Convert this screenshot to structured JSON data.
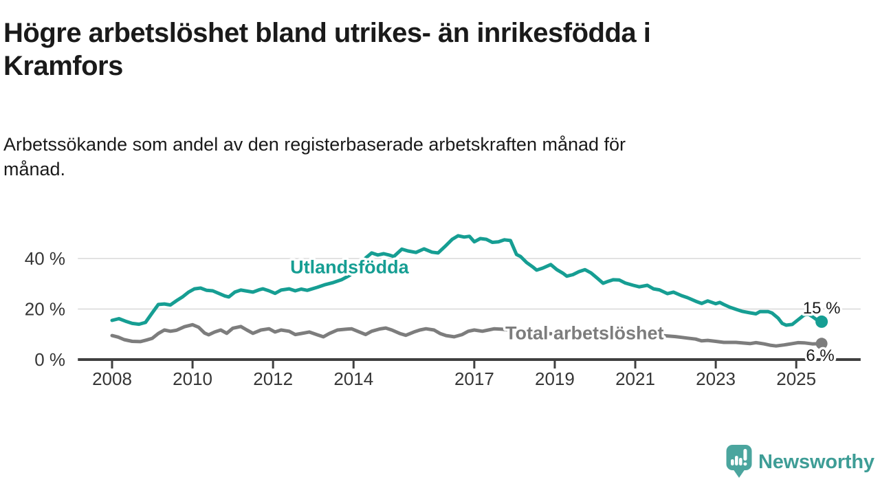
{
  "header": {
    "title": "Högre arbetslöshet bland utrikes- än inrikesfödda i Kramfors",
    "title_lines": [
      "Högre arbetslöshet bland utrikes- än inrikesfödda i",
      "Kramfors"
    ],
    "subtitle": "Arbetssökande som andel av den registerbaserade arbetskraften månad för månad.",
    "subtitle_lines": [
      "Arbetssökande som andel av den registerbaserade arbetskraften månad för",
      "månad."
    ]
  },
  "branding": {
    "name": "Newsworthy",
    "icon": "speech-bubble-bar-chart-exclamation",
    "badge_color": "#4ba59e",
    "text_color": "#3e9d96"
  },
  "chart_data": {
    "type": "line",
    "title": "Högre arbetslöshet bland utrikes- än inrikesfödda i Kramfors",
    "subtitle": "Arbetssökande som andel av den registerbaserade arbetskraften månad för månad.",
    "xlabel": "",
    "ylabel": "",
    "unit": "%",
    "grid": "horizontal",
    "legend_position": "inline-labels",
    "x_axis": {
      "ticks": [
        2008,
        2010,
        2012,
        2014,
        2017,
        2019,
        2021,
        2023,
        2025
      ],
      "range": [
        2007.15,
        2026.6
      ]
    },
    "y_axis": {
      "ticks": [
        {
          "value": 0,
          "label": "0 %"
        },
        {
          "value": 20,
          "label": "20 %"
        },
        {
          "value": 40,
          "label": "40 %"
        }
      ],
      "range": [
        0,
        52
      ]
    },
    "colors": {
      "gridline": "#d8d8d8",
      "axis": "#404040",
      "tick_text": "#363636",
      "annotation_text": "#1a1a1a"
    },
    "series": [
      {
        "name": "Utlandsfödda",
        "color": "#169e93",
        "end_label": "15 %",
        "end_value": 15,
        "label_anchor": [
          2013.9,
          36.6
        ],
        "points": [
          [
            2008.0,
            15.5
          ],
          [
            2008.17,
            16.2
          ],
          [
            2008.33,
            15.2
          ],
          [
            2008.5,
            14.3
          ],
          [
            2008.67,
            14.0
          ],
          [
            2008.83,
            14.7
          ],
          [
            2009.0,
            18.5
          ],
          [
            2009.15,
            21.8
          ],
          [
            2009.3,
            22.0
          ],
          [
            2009.45,
            21.6
          ],
          [
            2009.6,
            23.3
          ],
          [
            2009.75,
            24.8
          ],
          [
            2009.9,
            26.7
          ],
          [
            2010.05,
            28.0
          ],
          [
            2010.2,
            28.3
          ],
          [
            2010.35,
            27.4
          ],
          [
            2010.5,
            27.2
          ],
          [
            2010.65,
            26.2
          ],
          [
            2010.8,
            25.2
          ],
          [
            2010.9,
            24.8
          ],
          [
            2011.05,
            26.7
          ],
          [
            2011.2,
            27.5
          ],
          [
            2011.35,
            27.1
          ],
          [
            2011.5,
            26.7
          ],
          [
            2011.65,
            27.6
          ],
          [
            2011.75,
            28.0
          ],
          [
            2011.9,
            27.2
          ],
          [
            2012.05,
            26.2
          ],
          [
            2012.2,
            27.5
          ],
          [
            2012.4,
            28.0
          ],
          [
            2012.55,
            27.2
          ],
          [
            2012.7,
            27.9
          ],
          [
            2012.85,
            27.4
          ],
          [
            2013.1,
            28.6
          ],
          [
            2013.3,
            29.7
          ],
          [
            2013.5,
            30.5
          ],
          [
            2013.7,
            31.6
          ],
          [
            2013.9,
            33.3
          ],
          [
            2014.1,
            36.2
          ],
          [
            2014.3,
            40.2
          ],
          [
            2014.45,
            42.2
          ],
          [
            2014.6,
            41.4
          ],
          [
            2014.75,
            41.9
          ],
          [
            2014.9,
            41.3
          ],
          [
            2015.0,
            40.8
          ],
          [
            2015.2,
            43.7
          ],
          [
            2015.35,
            43.0
          ],
          [
            2015.55,
            42.4
          ],
          [
            2015.75,
            43.8
          ],
          [
            2015.95,
            42.5
          ],
          [
            2016.1,
            42.2
          ],
          [
            2016.3,
            45.2
          ],
          [
            2016.45,
            47.6
          ],
          [
            2016.6,
            49.0
          ],
          [
            2016.75,
            48.5
          ],
          [
            2016.88,
            48.8
          ],
          [
            2017.0,
            46.6
          ],
          [
            2017.15,
            47.9
          ],
          [
            2017.3,
            47.6
          ],
          [
            2017.45,
            46.4
          ],
          [
            2017.6,
            46.6
          ],
          [
            2017.75,
            47.4
          ],
          [
            2017.9,
            47.1
          ],
          [
            2018.05,
            41.6
          ],
          [
            2018.15,
            40.8
          ],
          [
            2018.3,
            38.4
          ],
          [
            2018.45,
            36.7
          ],
          [
            2018.55,
            35.4
          ],
          [
            2018.7,
            36.2
          ],
          [
            2018.9,
            37.6
          ],
          [
            2019.05,
            35.6
          ],
          [
            2019.2,
            34.2
          ],
          [
            2019.3,
            33.0
          ],
          [
            2019.45,
            33.6
          ],
          [
            2019.6,
            34.8
          ],
          [
            2019.75,
            35.6
          ],
          [
            2019.9,
            34.3
          ],
          [
            2020.05,
            32.3
          ],
          [
            2020.2,
            30.2
          ],
          [
            2020.3,
            30.8
          ],
          [
            2020.45,
            31.6
          ],
          [
            2020.6,
            31.5
          ],
          [
            2020.75,
            30.3
          ],
          [
            2020.95,
            29.4
          ],
          [
            2021.1,
            28.8
          ],
          [
            2021.3,
            29.4
          ],
          [
            2021.45,
            28.0
          ],
          [
            2021.6,
            27.6
          ],
          [
            2021.8,
            26.1
          ],
          [
            2021.95,
            26.7
          ],
          [
            2022.15,
            25.3
          ],
          [
            2022.3,
            24.5
          ],
          [
            2022.5,
            23.1
          ],
          [
            2022.65,
            22.2
          ],
          [
            2022.8,
            23.2
          ],
          [
            2023.0,
            22.1
          ],
          [
            2023.1,
            22.6
          ],
          [
            2023.2,
            21.8
          ],
          [
            2023.35,
            20.7
          ],
          [
            2023.5,
            19.9
          ],
          [
            2023.65,
            19.1
          ],
          [
            2023.85,
            18.5
          ],
          [
            2024.0,
            18.1
          ],
          [
            2024.1,
            19.0
          ],
          [
            2024.3,
            19.0
          ],
          [
            2024.4,
            18.4
          ],
          [
            2024.55,
            16.4
          ],
          [
            2024.65,
            14.3
          ],
          [
            2024.75,
            13.6
          ],
          [
            2024.9,
            13.9
          ],
          [
            2025.05,
            15.8
          ],
          [
            2025.2,
            17.7
          ],
          [
            2025.3,
            18.0
          ],
          [
            2025.4,
            17.0
          ],
          [
            2025.55,
            15.3
          ],
          [
            2025.63,
            15.0
          ]
        ]
      },
      {
        "name": "Total arbetslöshet",
        "color": "#7d7d7d",
        "end_label": "6 %",
        "end_value": 6,
        "label_anchor": [
          2019.74,
          10.5
        ],
        "points": [
          [
            2008.0,
            9.5
          ],
          [
            2008.15,
            8.9
          ],
          [
            2008.3,
            7.9
          ],
          [
            2008.5,
            7.2
          ],
          [
            2008.7,
            7.1
          ],
          [
            2008.85,
            7.7
          ],
          [
            2009.0,
            8.4
          ],
          [
            2009.15,
            10.3
          ],
          [
            2009.3,
            11.7
          ],
          [
            2009.45,
            11.2
          ],
          [
            2009.6,
            11.6
          ],
          [
            2009.8,
            13.0
          ],
          [
            2010.0,
            13.8
          ],
          [
            2010.15,
            12.8
          ],
          [
            2010.3,
            10.5
          ],
          [
            2010.4,
            9.8
          ],
          [
            2010.55,
            10.9
          ],
          [
            2010.7,
            11.7
          ],
          [
            2010.85,
            10.4
          ],
          [
            2011.0,
            12.4
          ],
          [
            2011.2,
            13.1
          ],
          [
            2011.35,
            11.7
          ],
          [
            2011.5,
            10.4
          ],
          [
            2011.7,
            11.7
          ],
          [
            2011.9,
            12.2
          ],
          [
            2012.05,
            10.9
          ],
          [
            2012.2,
            11.7
          ],
          [
            2012.4,
            11.2
          ],
          [
            2012.55,
            9.9
          ],
          [
            2012.7,
            10.3
          ],
          [
            2012.9,
            10.9
          ],
          [
            2013.1,
            9.8
          ],
          [
            2013.25,
            9.0
          ],
          [
            2013.4,
            10.3
          ],
          [
            2013.6,
            11.7
          ],
          [
            2013.8,
            12.0
          ],
          [
            2013.95,
            12.2
          ],
          [
            2014.1,
            11.2
          ],
          [
            2014.3,
            9.9
          ],
          [
            2014.45,
            11.2
          ],
          [
            2014.65,
            12.1
          ],
          [
            2014.8,
            12.5
          ],
          [
            2014.95,
            11.7
          ],
          [
            2015.15,
            10.3
          ],
          [
            2015.3,
            9.6
          ],
          [
            2015.5,
            10.9
          ],
          [
            2015.65,
            11.7
          ],
          [
            2015.8,
            12.2
          ],
          [
            2016.0,
            11.7
          ],
          [
            2016.15,
            10.3
          ],
          [
            2016.3,
            9.5
          ],
          [
            2016.5,
            9.0
          ],
          [
            2016.7,
            9.9
          ],
          [
            2016.85,
            11.2
          ],
          [
            2017.0,
            11.7
          ],
          [
            2017.2,
            11.2
          ],
          [
            2017.35,
            11.7
          ],
          [
            2017.5,
            12.2
          ],
          [
            2017.7,
            12.0
          ],
          [
            2018.0,
            11.4
          ],
          [
            2018.4,
            10.8
          ],
          [
            2018.8,
            10.3
          ],
          [
            2019.2,
            10.0
          ],
          [
            2019.6,
            9.9
          ],
          [
            2020.0,
            10.4
          ],
          [
            2020.4,
            11.0
          ],
          [
            2020.8,
            10.8
          ],
          [
            2021.2,
            10.2
          ],
          [
            2021.6,
            9.6
          ],
          [
            2022.0,
            9.1
          ],
          [
            2022.15,
            8.8
          ],
          [
            2022.3,
            8.5
          ],
          [
            2022.5,
            8.1
          ],
          [
            2022.65,
            7.4
          ],
          [
            2022.8,
            7.6
          ],
          [
            2023.0,
            7.2
          ],
          [
            2023.2,
            6.8
          ],
          [
            2023.5,
            6.8
          ],
          [
            2023.85,
            6.3
          ],
          [
            2024.0,
            6.7
          ],
          [
            2024.2,
            6.2
          ],
          [
            2024.35,
            5.7
          ],
          [
            2024.5,
            5.4
          ],
          [
            2024.7,
            5.8
          ],
          [
            2024.9,
            6.3
          ],
          [
            2025.05,
            6.7
          ],
          [
            2025.2,
            6.6
          ],
          [
            2025.4,
            6.2
          ],
          [
            2025.63,
            6.3
          ]
        ]
      }
    ]
  }
}
